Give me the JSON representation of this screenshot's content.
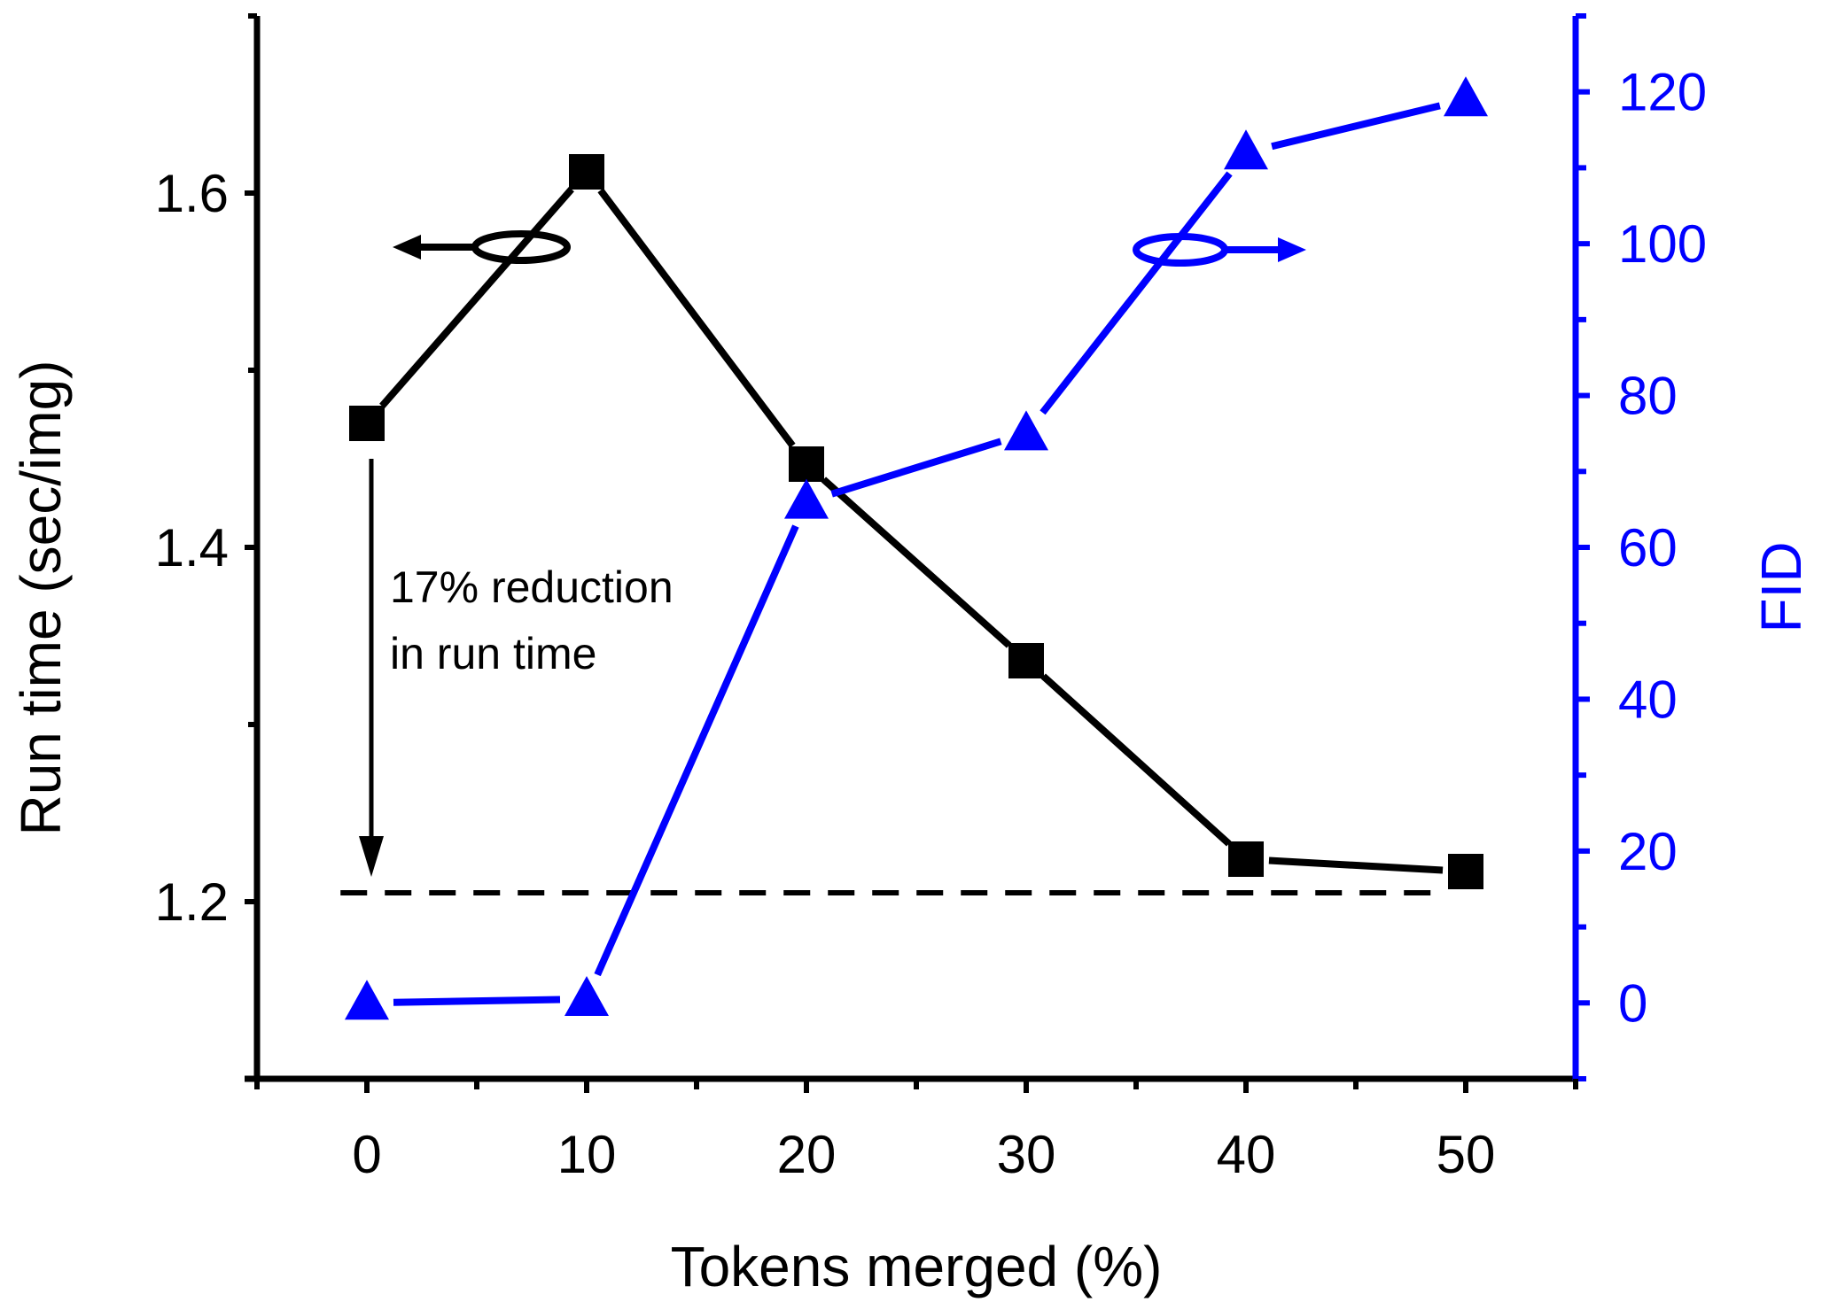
{
  "chart_data": {
    "type": "line",
    "xlabel": "Tokens merged (%)",
    "ylabel_left": "Run time (sec/img)",
    "ylabel_right": "FID",
    "x_ticks": [
      0,
      10,
      20,
      30,
      40,
      50
    ],
    "x_ticks_labels": [
      "0",
      "10",
      "20",
      "30",
      "40",
      "50"
    ],
    "xlim": [
      -5,
      55
    ],
    "y_left_ticks": [
      1.2,
      1.4,
      1.6
    ],
    "y_left_ticks_labels": [
      "1.2",
      "1.4",
      "1.6"
    ],
    "ylim_left": [
      1.1,
      1.7
    ],
    "y_right_ticks": [
      0,
      20,
      40,
      60,
      80,
      100,
      120
    ],
    "y_right_ticks_labels": [
      "0",
      "20",
      "40",
      "60",
      "80",
      "100",
      "120"
    ],
    "ylim_right": [
      -10,
      130
    ],
    "grid": false,
    "series": [
      {
        "axis": "left",
        "marker": "square",
        "color": "#000000",
        "x": [
          0,
          10,
          20,
          30,
          40,
          50
        ],
        "values": [
          1.47,
          1.612,
          1.447,
          1.336,
          1.224,
          1.217
        ]
      },
      {
        "axis": "right",
        "marker": "triangle",
        "color": "#0000ff",
        "x": [
          0,
          10,
          20,
          30,
          40,
          50
        ],
        "values": [
          0,
          0.5,
          66,
          75,
          112,
          119
        ]
      }
    ],
    "reference_line": {
      "axis": "left",
      "value": 1.205,
      "style": "dashed",
      "color": "#000000"
    },
    "annotations": {
      "reduction_line1": "17% reduction",
      "reduction_line2": "in run time"
    }
  }
}
